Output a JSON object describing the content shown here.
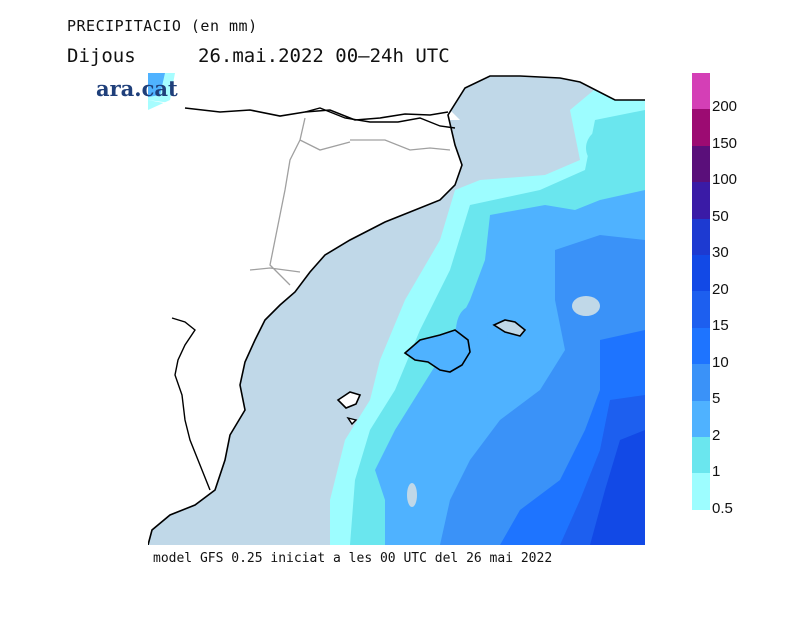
{
  "header": {
    "title": "PRECIPITACIO (en mm)",
    "day": "Dijous",
    "period": "26.mai.2022 00–24h UTC"
  },
  "brand": "ara.cat",
  "footer": "model GFS 0.25 iniciat a les 00 UTC del 26 mai 2022",
  "legend": {
    "labels": [
      "200",
      "150",
      "100",
      "50",
      "30",
      "20",
      "15",
      "10",
      "5",
      "2",
      "1",
      "0.5"
    ],
    "colors": [
      "#d43fb6",
      "#9c0b72",
      "#5a0f7a",
      "#3a1ba6",
      "#1d3ad1",
      "#1249e6",
      "#1d5fef",
      "#1e74ff",
      "#3a92f8",
      "#4fb2ff",
      "#6ae6ee",
      "#9dfdff"
    ]
  },
  "map_colors": {
    "land": "#ffffff",
    "sea_dry": "#c0d8e8",
    "precip_05": "#9dfdff",
    "precip_1": "#6ae6ee",
    "precip_2": "#4fb2ff",
    "precip_5": "#3a92f8",
    "precip_10": "#1e74ff",
    "precip_15": "#1d5fef",
    "precip_20": "#1249e6",
    "coast": "#000000",
    "border": "#a0a0a0"
  }
}
